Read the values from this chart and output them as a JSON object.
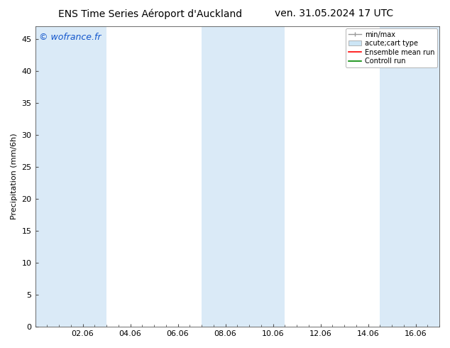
{
  "title_left": "ENS Time Series Aéroport d'Auckland",
  "title_right": "ven. 31.05.2024 17 UTC",
  "ylabel": "Precipitation (mm/6h)",
  "watermark": "© wofrance.fr",
  "xtick_labels": [
    "02.06",
    "04.06",
    "06.06",
    "08.06",
    "10.06",
    "12.06",
    "14.06",
    "16.06"
  ],
  "xtick_positions": [
    2,
    4,
    6,
    8,
    10,
    12,
    14,
    16
  ],
  "xlim": [
    0,
    17
  ],
  "ylim": [
    0,
    47
  ],
  "yticks": [
    0,
    5,
    10,
    15,
    20,
    25,
    30,
    35,
    40,
    45
  ],
  "bg_color": "#ffffff",
  "shaded_color": "#daeaf7",
  "shaded_bands": [
    [
      0,
      1.5
    ],
    [
      1.5,
      3.0
    ],
    [
      7.0,
      9.0
    ],
    [
      9.0,
      10.5
    ],
    [
      14.5,
      17.0
    ]
  ],
  "legend_entries": [
    {
      "label": "min/max",
      "type": "minmax",
      "color": "#aaaaaa"
    },
    {
      "label": "acute;cart type",
      "type": "box",
      "facecolor": "#cce5f5",
      "edgecolor": "#aaaaaa"
    },
    {
      "label": "Ensemble mean run",
      "type": "line",
      "color": "#ff0000"
    },
    {
      "label": "Controll run",
      "type": "line",
      "color": "#008800"
    }
  ],
  "title_fontsize": 10,
  "watermark_color": "#1155cc",
  "tick_fontsize": 8,
  "ylabel_fontsize": 8
}
